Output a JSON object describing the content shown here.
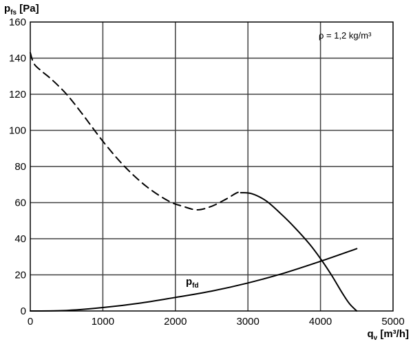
{
  "chart_data": {
    "type": "line",
    "y_title": {
      "main": "p",
      "sub": "fs",
      "unit": " [Pa]"
    },
    "x_title": {
      "main": "q",
      "sub": "v",
      "unit": " [m³/h]"
    },
    "xlim": [
      0,
      5000
    ],
    "ylim": [
      0,
      160
    ],
    "x_ticks": [
      "0",
      "1000",
      "2000",
      "3000",
      "4000",
      "5000"
    ],
    "y_ticks": [
      "0",
      "20",
      "40",
      "60",
      "80",
      "100",
      "120",
      "140",
      "160"
    ],
    "grid": true,
    "annotation": "ρ = 1,2 kg/m³",
    "series": [
      {
        "style": "dashed",
        "x": [
          0,
          50,
          150,
          300,
          500,
          700,
          1000,
          1300,
          1600,
          1900,
          2100,
          2300,
          2500,
          2700,
          2850,
          2900
        ],
        "y": [
          143,
          137,
          133,
          128,
          120,
          110,
          94,
          80,
          69,
          61,
          58,
          56,
          58,
          62,
          65.5,
          65.5
        ]
      },
      {
        "style": "solid",
        "x": [
          2900,
          3050,
          3250,
          3450,
          3650,
          3850,
          4000,
          4150,
          4300,
          4400,
          4500
        ],
        "y": [
          65.5,
          65,
          61,
          54,
          46,
          37,
          29,
          20,
          10,
          4,
          0
        ]
      },
      {
        "name_main": "p",
        "name_sub": "fd",
        "style": "solid",
        "x": [
          0,
          500,
          1000,
          1500,
          2000,
          2500,
          3000,
          3500,
          4000,
          4500
        ],
        "y": [
          0,
          0.3,
          1.9,
          4.3,
          7.5,
          11,
          15.5,
          21,
          27.5,
          34.5
        ]
      }
    ]
  }
}
